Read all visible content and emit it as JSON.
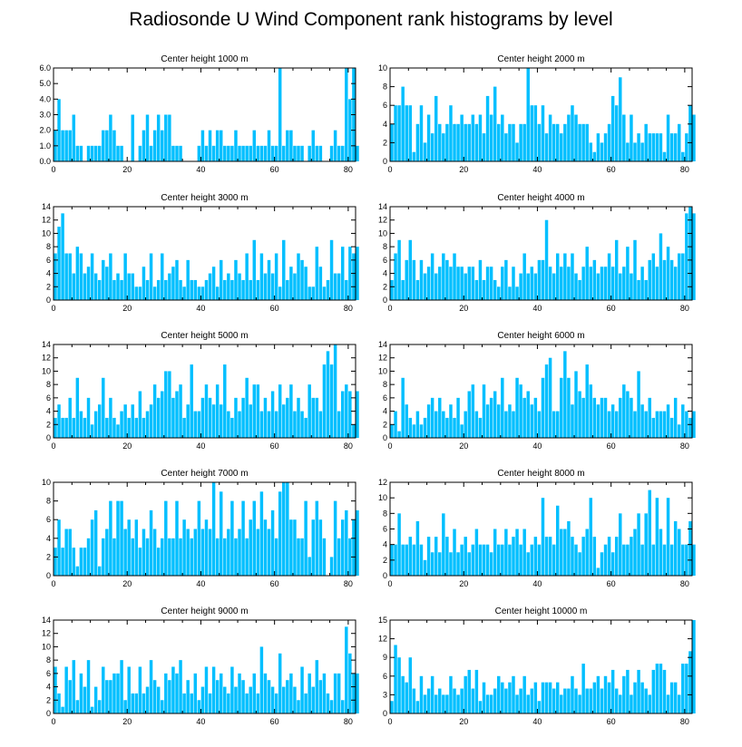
{
  "title": "Radiosonde U Wind Component rank histograms by level",
  "colors": {
    "bar": "#00bfff",
    "axis": "#000000",
    "background": "#ffffff"
  },
  "chart_data": [
    {
      "type": "bar",
      "title": "Center height 1000 m",
      "xlim": [
        0,
        82
      ],
      "ylim": [
        0,
        6
      ],
      "xticks": [
        0,
        20,
        40,
        60,
        80
      ],
      "yticks": [
        0,
        1,
        2,
        3,
        4,
        5,
        6
      ],
      "ytick_labels": [
        "0.0",
        "1.0",
        "2.0",
        "3.0",
        "4.0",
        "5.0",
        "6.0"
      ],
      "values": [
        2,
        4,
        2,
        2,
        2,
        3,
        1,
        1,
        0,
        1,
        1,
        1,
        1,
        2,
        2,
        3,
        2,
        1,
        1,
        0,
        0,
        3,
        0,
        1,
        2,
        3,
        1,
        2,
        3,
        2,
        3,
        3,
        1,
        1,
        1,
        0,
        0,
        0,
        0,
        1,
        2,
        1,
        2,
        1,
        2,
        2,
        1,
        1,
        1,
        2,
        1,
        1,
        1,
        1,
        2,
        1,
        1,
        1,
        2,
        1,
        1,
        6,
        1,
        2,
        2,
        1,
        1,
        1,
        0,
        1,
        2,
        1,
        1,
        0,
        0,
        1,
        2,
        1,
        1,
        6,
        4,
        6,
        1
      ]
    },
    {
      "type": "bar",
      "title": "Center height 2000 m",
      "xlim": [
        0,
        82
      ],
      "ylim": [
        0,
        10
      ],
      "xticks": [
        0,
        20,
        40,
        60,
        80
      ],
      "yticks": [
        0,
        2,
        4,
        6,
        8,
        10
      ],
      "ytick_labels": [
        "0",
        "2",
        "4",
        "6",
        "8",
        "10"
      ],
      "values": [
        4,
        6,
        6,
        8,
        6,
        6,
        1,
        4,
        6,
        2,
        5,
        3,
        7,
        4,
        3,
        4,
        6,
        4,
        4,
        5,
        4,
        4,
        5,
        4,
        5,
        3,
        7,
        5,
        8,
        4,
        5,
        3,
        4,
        4,
        2,
        4,
        4,
        10,
        6,
        6,
        4,
        6,
        3,
        5,
        4,
        4,
        3,
        4,
        5,
        6,
        5,
        4,
        4,
        4,
        2,
        1,
        3,
        2,
        3,
        4,
        7,
        6,
        9,
        5,
        2,
        5,
        2,
        3,
        2,
        4,
        3,
        3,
        3,
        3,
        1,
        5,
        3,
        3,
        4,
        1,
        3,
        6,
        5
      ]
    },
    {
      "type": "bar",
      "title": "Center height 3000 m",
      "xlim": [
        0,
        82
      ],
      "ylim": [
        0,
        14
      ],
      "xticks": [
        0,
        20,
        40,
        60,
        80
      ],
      "yticks": [
        0,
        2,
        4,
        6,
        8,
        10,
        12,
        14
      ],
      "ytick_labels": [
        "0",
        "2",
        "4",
        "6",
        "8",
        "10",
        "12",
        "14"
      ],
      "values": [
        7,
        11,
        13,
        7,
        7,
        4,
        8,
        7,
        4,
        5,
        7,
        4,
        3,
        6,
        5,
        7,
        3,
        4,
        3,
        7,
        4,
        4,
        2,
        2,
        5,
        3,
        7,
        2,
        3,
        7,
        3,
        4,
        5,
        6,
        3,
        2,
        6,
        3,
        3,
        2,
        2,
        3,
        4,
        5,
        2,
        6,
        3,
        4,
        3,
        6,
        4,
        3,
        7,
        3,
        9,
        3,
        7,
        4,
        6,
        4,
        7,
        2,
        9,
        3,
        5,
        4,
        7,
        6,
        5,
        2,
        2,
        8,
        5,
        2,
        3,
        9,
        4,
        4,
        8,
        3,
        8,
        7,
        8
      ]
    },
    {
      "type": "bar",
      "title": "Center height 4000 m",
      "xlim": [
        0,
        82
      ],
      "ylim": [
        0,
        14
      ],
      "xticks": [
        0,
        20,
        40,
        60,
        80
      ],
      "yticks": [
        0,
        2,
        4,
        6,
        8,
        10,
        12,
        14
      ],
      "ytick_labels": [
        "0",
        "2",
        "4",
        "6",
        "8",
        "10",
        "12",
        "14"
      ],
      "values": [
        3,
        7,
        9,
        3,
        6,
        9,
        6,
        3,
        6,
        4,
        5,
        7,
        4,
        5,
        7,
        6,
        5,
        7,
        5,
        5,
        4,
        5,
        5,
        3,
        6,
        3,
        5,
        5,
        3,
        2,
        5,
        6,
        2,
        5,
        2,
        4,
        7,
        4,
        5,
        4,
        6,
        6,
        12,
        5,
        4,
        7,
        5,
        7,
        5,
        7,
        4,
        3,
        5,
        8,
        5,
        6,
        4,
        5,
        5,
        7,
        5,
        9,
        4,
        5,
        8,
        4,
        9,
        3,
        5,
        3,
        6,
        7,
        5,
        10,
        6,
        8,
        6,
        5,
        7,
        7,
        13,
        14,
        13
      ]
    },
    {
      "type": "bar",
      "title": "Center height 5000 m",
      "xlim": [
        0,
        82
      ],
      "ylim": [
        0,
        14
      ],
      "xticks": [
        0,
        20,
        40,
        60,
        80
      ],
      "yticks": [
        0,
        2,
        4,
        6,
        8,
        10,
        12,
        14
      ],
      "ytick_labels": [
        "0",
        "2",
        "4",
        "6",
        "8",
        "10",
        "12",
        "14"
      ],
      "values": [
        3,
        5,
        3,
        3,
        6,
        3,
        9,
        4,
        3,
        6,
        2,
        4,
        5,
        9,
        3,
        6,
        3,
        2,
        4,
        5,
        3,
        5,
        3,
        7,
        3,
        4,
        5,
        8,
        6,
        7,
        10,
        10,
        6,
        7,
        8,
        3,
        5,
        11,
        4,
        4,
        6,
        8,
        6,
        5,
        8,
        5,
        11,
        4,
        3,
        6,
        4,
        6,
        9,
        5,
        8,
        8,
        4,
        6,
        4,
        7,
        4,
        8,
        5,
        6,
        8,
        4,
        6,
        4,
        3,
        8,
        6,
        6,
        4,
        11,
        13,
        11,
        14,
        4,
        7,
        8,
        7,
        2,
        7
      ]
    },
    {
      "type": "bar",
      "title": "Center height 6000 m",
      "xlim": [
        0,
        82
      ],
      "ylim": [
        0,
        14
      ],
      "xticks": [
        0,
        20,
        40,
        60,
        80
      ],
      "yticks": [
        0,
        2,
        4,
        6,
        8,
        10,
        12,
        14
      ],
      "ytick_labels": [
        "0",
        "2",
        "4",
        "6",
        "8",
        "10",
        "12",
        "14"
      ],
      "values": [
        2,
        4,
        1,
        9,
        5,
        3,
        2,
        4,
        2,
        3,
        5,
        6,
        4,
        6,
        4,
        3,
        5,
        3,
        6,
        2,
        4,
        7,
        8,
        4,
        3,
        8,
        5,
        6,
        7,
        5,
        9,
        4,
        5,
        4,
        9,
        8,
        6,
        7,
        5,
        6,
        4,
        9,
        11,
        12,
        4,
        4,
        9,
        13,
        9,
        5,
        10,
        7,
        6,
        11,
        8,
        6,
        5,
        6,
        6,
        4,
        5,
        4,
        6,
        8,
        7,
        6,
        4,
        10,
        5,
        4,
        6,
        3,
        4,
        4,
        4,
        5,
        3,
        6,
        2,
        5,
        4,
        3,
        4
      ]
    },
    {
      "type": "bar",
      "title": "Center height 7000 m",
      "xlim": [
        0,
        82
      ],
      "ylim": [
        0,
        10
      ],
      "xticks": [
        0,
        20,
        40,
        60,
        80
      ],
      "yticks": [
        0,
        2,
        4,
        6,
        8,
        10
      ],
      "ytick_labels": [
        "0",
        "2",
        "4",
        "6",
        "8",
        "10"
      ],
      "values": [
        3,
        6,
        3,
        5,
        5,
        3,
        1,
        3,
        3,
        4,
        6,
        7,
        1,
        4,
        5,
        8,
        4,
        8,
        8,
        5,
        6,
        4,
        6,
        3,
        5,
        4,
        7,
        5,
        3,
        4,
        8,
        4,
        4,
        8,
        4,
        6,
        5,
        4,
        5,
        8,
        5,
        6,
        5,
        10,
        4,
        9,
        4,
        5,
        8,
        4,
        5,
        8,
        4,
        6,
        8,
        5,
        9,
        6,
        5,
        7,
        4,
        9,
        10,
        10,
        6,
        6,
        4,
        4,
        8,
        2,
        6,
        8,
        6,
        4,
        0,
        2,
        8,
        4,
        6,
        7,
        4,
        6,
        7
      ]
    },
    {
      "type": "bar",
      "title": "Center height 8000 m",
      "xlim": [
        0,
        82
      ],
      "ylim": [
        0,
        12
      ],
      "xticks": [
        0,
        20,
        40,
        60,
        80
      ],
      "yticks": [
        0,
        2,
        4,
        6,
        8,
        10,
        12
      ],
      "ytick_labels": [
        "0",
        "2",
        "4",
        "6",
        "8",
        "10",
        "12"
      ],
      "values": [
        4,
        4,
        8,
        4,
        4,
        5,
        4,
        7,
        4,
        2,
        5,
        3,
        5,
        3,
        8,
        5,
        3,
        6,
        3,
        4,
        5,
        3,
        4,
        6,
        4,
        4,
        4,
        3,
        6,
        4,
        4,
        6,
        4,
        5,
        6,
        4,
        6,
        3,
        4,
        5,
        4,
        10,
        5,
        5,
        4,
        9,
        6,
        6,
        7,
        5,
        4,
        3,
        5,
        6,
        10,
        5,
        1,
        3,
        4,
        5,
        3,
        5,
        8,
        4,
        4,
        5,
        6,
        8,
        4,
        8,
        11,
        4,
        10,
        6,
        4,
        10,
        4,
        7,
        6,
        4,
        4,
        7,
        4
      ]
    },
    {
      "type": "bar",
      "title": "Center height 9000 m",
      "xlim": [
        0,
        82
      ],
      "ylim": [
        0,
        14
      ],
      "xticks": [
        0,
        20,
        40,
        60,
        80
      ],
      "yticks": [
        0,
        2,
        4,
        6,
        8,
        10,
        12,
        14
      ],
      "ytick_labels": [
        "0",
        "2",
        "4",
        "6",
        "8",
        "10",
        "12",
        "14"
      ],
      "values": [
        7,
        3,
        1,
        7,
        5,
        8,
        2,
        6,
        4,
        8,
        1,
        4,
        2,
        7,
        5,
        5,
        6,
        6,
        8,
        2,
        7,
        3,
        3,
        7,
        3,
        4,
        8,
        5,
        4,
        2,
        6,
        5,
        7,
        6,
        8,
        3,
        5,
        3,
        6,
        2,
        4,
        7,
        3,
        7,
        5,
        6,
        4,
        3,
        7,
        4,
        6,
        5,
        3,
        4,
        6,
        3,
        10,
        6,
        5,
        4,
        3,
        9,
        4,
        5,
        6,
        4,
        2,
        7,
        3,
        6,
        4,
        8,
        5,
        6,
        3,
        2,
        6,
        6,
        2,
        13,
        9,
        6,
        6
      ]
    },
    {
      "type": "bar",
      "title": "Center height 10000 m",
      "xlim": [
        0,
        82
      ],
      "ylim": [
        0,
        15
      ],
      "xticks": [
        0,
        20,
        40,
        60,
        80
      ],
      "yticks": [
        0,
        3,
        6,
        9,
        12,
        15
      ],
      "ytick_labels": [
        "0",
        "3",
        "6",
        "9",
        "12",
        "15"
      ],
      "values": [
        2,
        11,
        9,
        6,
        5,
        9,
        4,
        2,
        6,
        3,
        4,
        6,
        3,
        4,
        3,
        3,
        6,
        4,
        3,
        4,
        6,
        7,
        4,
        7,
        2,
        5,
        3,
        3,
        4,
        6,
        5,
        4,
        5,
        6,
        3,
        4,
        6,
        3,
        4,
        5,
        2,
        5,
        5,
        5,
        4,
        5,
        3,
        4,
        4,
        6,
        4,
        3,
        8,
        4,
        4,
        5,
        6,
        4,
        6,
        5,
        7,
        4,
        3,
        6,
        7,
        3,
        5,
        7,
        5,
        4,
        3,
        7,
        8,
        8,
        7,
        3,
        5,
        5,
        3,
        8,
        8,
        10,
        15
      ]
    }
  ]
}
